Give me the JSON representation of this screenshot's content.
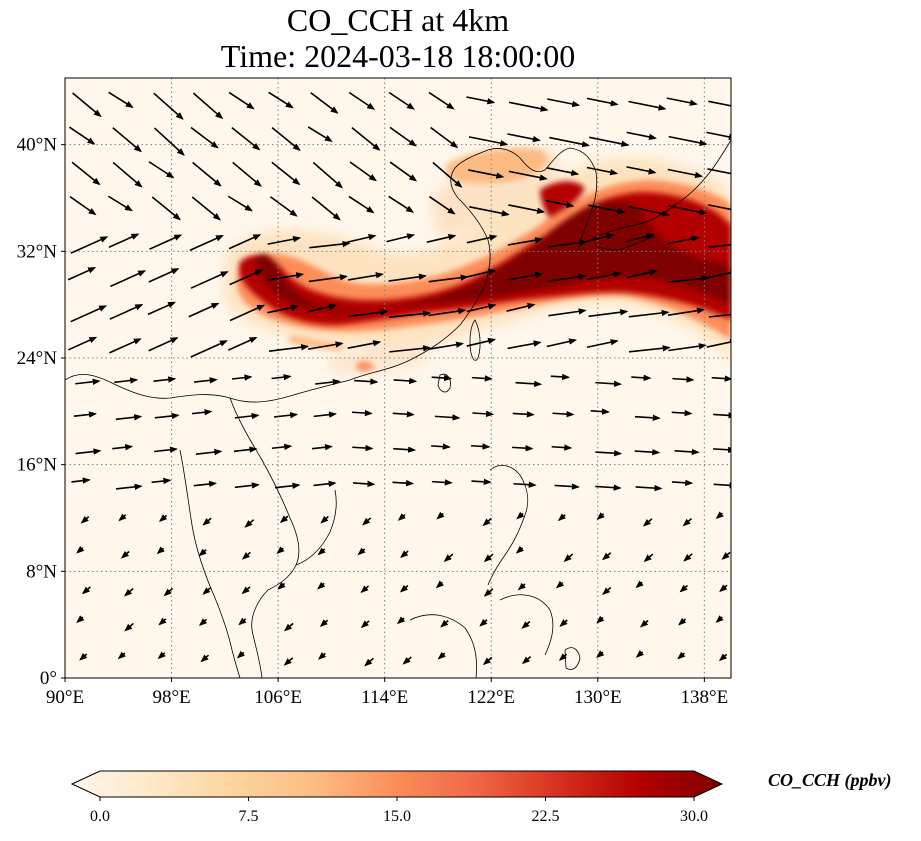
{
  "title": {
    "line1": "CO_CCH at 4km",
    "line2": "Time: 2024-03-18 18:00:00"
  },
  "map": {
    "lon_range": [
      90,
      140
    ],
    "lat_range": [
      0,
      45
    ],
    "lon_ticks": [
      90,
      98,
      106,
      114,
      122,
      130,
      138
    ],
    "lon_tick_labels": [
      "90°E",
      "98°E",
      "106°E",
      "114°E",
      "122°E",
      "130°E",
      "138°E"
    ],
    "lat_ticks": [
      0,
      8,
      16,
      24,
      32,
      40
    ],
    "lat_tick_labels": [
      "0°",
      "8°N",
      "16°N",
      "24°N",
      "32°N",
      "40°N"
    ],
    "grid": "dotted gray",
    "field_colormap": "OrRd",
    "coastline_color": "#000000",
    "wind_vectors": "black arrows"
  },
  "colorbar": {
    "label": "CO_CCH (ppbv)",
    "ticks": [
      0.0,
      7.5,
      15.0,
      22.5,
      30.0
    ],
    "tick_labels": [
      "0.0",
      "7.5",
      "15.0",
      "22.5",
      "30.0"
    ],
    "range": [
      0,
      30
    ],
    "extend": "both",
    "colors": [
      "#fff7ec",
      "#fee8c8",
      "#fdd49e",
      "#fdbb84",
      "#fc8d59",
      "#ef6548",
      "#d7301f",
      "#b30000",
      "#7f0000"
    ]
  }
}
